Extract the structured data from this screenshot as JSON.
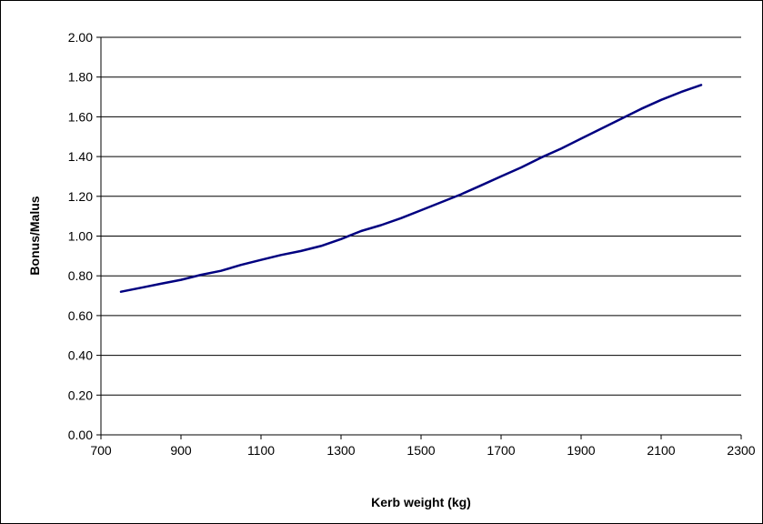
{
  "chart_data": {
    "type": "line",
    "title": "",
    "xlabel": "Kerb weight (kg)",
    "ylabel": "Bonus/Malus",
    "xlim": [
      700,
      2300
    ],
    "ylim": [
      0,
      2
    ],
    "x_ticks": [
      "700",
      "900",
      "1100",
      "1300",
      "1500",
      "1700",
      "1900",
      "2100",
      "2300"
    ],
    "y_ticks": [
      "0.00",
      "0.20",
      "0.40",
      "0.60",
      "0.80",
      "1.00",
      "1.20",
      "1.40",
      "1.60",
      "1.80",
      "2.00"
    ],
    "grid": "horizontal",
    "legend": "none",
    "line_color": "#000080",
    "series": [
      {
        "x": [
          750,
          800,
          850,
          900,
          950,
          1000,
          1050,
          1100,
          1150,
          1200,
          1250,
          1300,
          1350,
          1400,
          1450,
          1500,
          1550,
          1600,
          1650,
          1700,
          1750,
          1800,
          1850,
          1900,
          1950,
          2000,
          2050,
          2100,
          2150,
          2200
        ],
        "y": [
          0.72,
          0.74,
          0.76,
          0.78,
          0.805,
          0.825,
          0.855,
          0.88,
          0.905,
          0.925,
          0.95,
          0.985,
          1.025,
          1.055,
          1.09,
          1.13,
          1.17,
          1.21,
          1.255,
          1.3,
          1.345,
          1.395,
          1.44,
          1.49,
          1.54,
          1.59,
          1.64,
          1.685,
          1.725,
          1.76
        ]
      }
    ]
  }
}
